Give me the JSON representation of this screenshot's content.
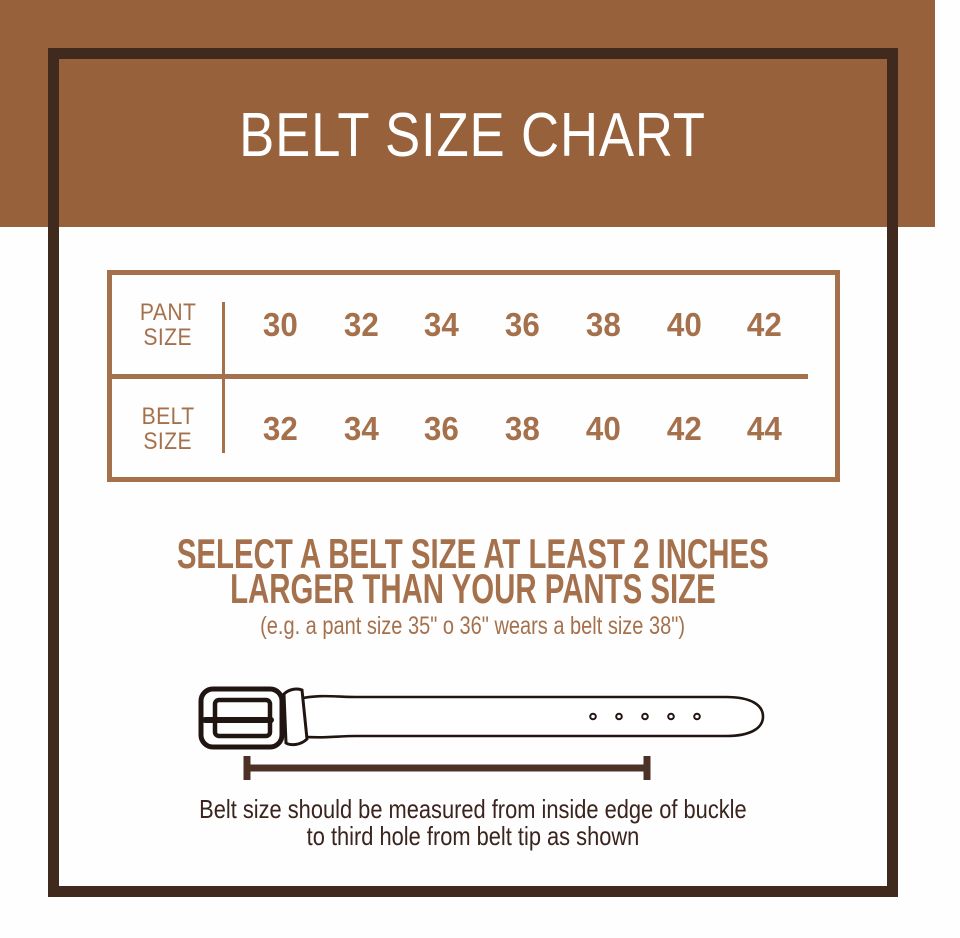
{
  "header": {
    "title": "BELT SIZE CHART"
  },
  "size_table": {
    "rows": [
      {
        "label": [
          "PANT",
          "SIZE"
        ],
        "values": [
          "30",
          "32",
          "34",
          "36",
          "38",
          "40",
          "42"
        ]
      },
      {
        "label": [
          "BELT",
          "SIZE"
        ],
        "values": [
          "32",
          "34",
          "36",
          "38",
          "40",
          "42",
          "44"
        ]
      }
    ]
  },
  "instruction": {
    "line1": "SELECT A BELT SIZE AT LEAST 2 INCHES",
    "line2": "LARGER THAN YOUR PANTS SIZE",
    "example": "(e.g. a pant size 35\" o 36\" wears a belt size 38\")"
  },
  "note": {
    "line1": "Belt size should be measured from inside edge of buckle",
    "line2": "to third hole from belt tip as shown"
  },
  "belt_illustration": {
    "holes": 5,
    "hole_start_x": 403,
    "hole_step_x": 26,
    "hole_y": 36.5
  },
  "colors": {
    "header_bg": "#96613B",
    "frame": "#3F2A1D",
    "accent": "#A5714C",
    "dark": "#3A241D",
    "belt": "#201510",
    "dim": "#4C3126",
    "white_txt": "#FFFFFF"
  },
  "chart_data": {
    "type": "table",
    "title": "BELT SIZE CHART",
    "series": [
      {
        "name": "PANT SIZE",
        "values": [
          30,
          32,
          34,
          36,
          38,
          40,
          42
        ]
      },
      {
        "name": "BELT SIZE",
        "values": [
          32,
          34,
          36,
          38,
          40,
          42,
          44
        ]
      }
    ],
    "rule": "Belt size = pant size + 2 inches",
    "measurement_rule": "Belt size should be measured from inside edge of buckle to third hole from belt tip"
  }
}
